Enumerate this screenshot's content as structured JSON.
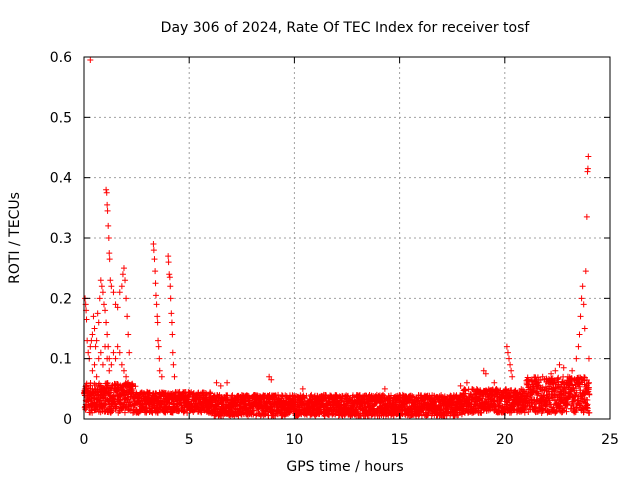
{
  "chart_data": {
    "type": "scatter",
    "title": "Day 306 of 2024, Rate Of TEC Index for receiver tosf",
    "xlabel": "GPS time / hours",
    "ylabel": "ROTI / TECUs",
    "xlim": [
      0,
      25
    ],
    "ylim": [
      0,
      0.6
    ],
    "xticks": [
      0,
      5,
      10,
      15,
      20,
      25
    ],
    "xtick_labels": [
      "0",
      "5",
      "10",
      "15",
      "20",
      "25"
    ],
    "yticks": [
      0,
      0.1,
      0.2,
      0.3,
      0.4,
      0.5,
      0.6
    ],
    "ytick_labels": [
      "0",
      "0.1",
      "0.2",
      "0.3",
      "0.4",
      "0.5",
      "0.6"
    ],
    "grid": true,
    "marker": "+",
    "color": "#ff0000",
    "series": [
      {
        "name": "ROTI",
        "points": [
          [
            0.05,
            0.2
          ],
          [
            0.08,
            0.19
          ],
          [
            0.1,
            0.18
          ],
          [
            0.12,
            0.165
          ],
          [
            0.15,
            0.13
          ],
          [
            0.2,
            0.11
          ],
          [
            0.25,
            0.1
          ],
          [
            0.3,
            0.12
          ],
          [
            0.35,
            0.13
          ],
          [
            0.4,
            0.14
          ],
          [
            0.45,
            0.17
          ],
          [
            0.5,
            0.15
          ],
          [
            0.55,
            0.12
          ],
          [
            0.6,
            0.13
          ],
          [
            0.65,
            0.175
          ],
          [
            0.7,
            0.16
          ],
          [
            0.75,
            0.2
          ],
          [
            0.8,
            0.23
          ],
          [
            0.85,
            0.22
          ],
          [
            0.9,
            0.21
          ],
          [
            0.95,
            0.19
          ],
          [
            1.0,
            0.18
          ],
          [
            1.05,
            0.16
          ],
          [
            1.1,
            0.14
          ],
          [
            1.15,
            0.12
          ],
          [
            1.2,
            0.1
          ],
          [
            0.4,
            0.08
          ],
          [
            0.5,
            0.09
          ],
          [
            0.6,
            0.07
          ],
          [
            0.7,
            0.1
          ],
          [
            0.8,
            0.11
          ],
          [
            0.9,
            0.09
          ],
          [
            1.0,
            0.12
          ],
          [
            1.1,
            0.1
          ],
          [
            1.2,
            0.08
          ],
          [
            1.3,
            0.09
          ],
          [
            1.4,
            0.11
          ],
          [
            1.5,
            0.1
          ],
          [
            1.6,
            0.12
          ],
          [
            1.7,
            0.11
          ],
          [
            1.8,
            0.09
          ],
          [
            1.9,
            0.08
          ],
          [
            2.0,
            0.07
          ],
          [
            2.1,
            0.06
          ],
          [
            0.3,
            0.595
          ],
          [
            1.05,
            0.38
          ],
          [
            1.08,
            0.375
          ],
          [
            1.1,
            0.355
          ],
          [
            1.12,
            0.345
          ],
          [
            1.15,
            0.32
          ],
          [
            1.18,
            0.3
          ],
          [
            1.2,
            0.275
          ],
          [
            1.22,
            0.265
          ],
          [
            1.25,
            0.23
          ],
          [
            1.3,
            0.22
          ],
          [
            1.4,
            0.21
          ],
          [
            1.5,
            0.19
          ],
          [
            1.6,
            0.185
          ],
          [
            1.7,
            0.21
          ],
          [
            1.8,
            0.22
          ],
          [
            1.85,
            0.24
          ],
          [
            1.9,
            0.25
          ],
          [
            1.95,
            0.23
          ],
          [
            2.0,
            0.2
          ],
          [
            2.05,
            0.17
          ],
          [
            2.1,
            0.14
          ],
          [
            2.15,
            0.11
          ],
          [
            3.3,
            0.29
          ],
          [
            3.32,
            0.28
          ],
          [
            3.35,
            0.265
          ],
          [
            3.38,
            0.245
          ],
          [
            3.4,
            0.225
          ],
          [
            3.42,
            0.205
          ],
          [
            3.45,
            0.19
          ],
          [
            3.48,
            0.17
          ],
          [
            3.5,
            0.16
          ],
          [
            3.52,
            0.13
          ],
          [
            3.55,
            0.12
          ],
          [
            3.58,
            0.1
          ],
          [
            3.6,
            0.08
          ],
          [
            3.7,
            0.07
          ],
          [
            4.0,
            0.27
          ],
          [
            4.02,
            0.26
          ],
          [
            4.05,
            0.24
          ],
          [
            4.08,
            0.235
          ],
          [
            4.1,
            0.22
          ],
          [
            4.12,
            0.2
          ],
          [
            4.15,
            0.175
          ],
          [
            4.18,
            0.16
          ],
          [
            4.2,
            0.14
          ],
          [
            4.22,
            0.11
          ],
          [
            4.25,
            0.09
          ],
          [
            4.3,
            0.07
          ],
          [
            6.3,
            0.06
          ],
          [
            6.5,
            0.055
          ],
          [
            6.8,
            0.06
          ],
          [
            8.8,
            0.07
          ],
          [
            8.9,
            0.065
          ],
          [
            10.4,
            0.05
          ],
          [
            14.3,
            0.05
          ],
          [
            17.9,
            0.055
          ],
          [
            18.2,
            0.06
          ],
          [
            19.0,
            0.08
          ],
          [
            19.1,
            0.075
          ],
          [
            19.5,
            0.06
          ],
          [
            20.1,
            0.12
          ],
          [
            20.15,
            0.11
          ],
          [
            20.2,
            0.1
          ],
          [
            20.25,
            0.09
          ],
          [
            20.3,
            0.08
          ],
          [
            20.35,
            0.07
          ],
          [
            21.5,
            0.06
          ],
          [
            21.8,
            0.07
          ],
          [
            22.0,
            0.065
          ],
          [
            22.2,
            0.075
          ],
          [
            22.4,
            0.08
          ],
          [
            22.6,
            0.09
          ],
          [
            22.8,
            0.085
          ],
          [
            23.0,
            0.07
          ],
          [
            23.2,
            0.08
          ],
          [
            23.4,
            0.1
          ],
          [
            23.5,
            0.12
          ],
          [
            23.55,
            0.14
          ],
          [
            23.6,
            0.17
          ],
          [
            23.65,
            0.2
          ],
          [
            23.7,
            0.22
          ],
          [
            23.75,
            0.19
          ],
          [
            23.8,
            0.15
          ],
          [
            23.85,
            0.245
          ],
          [
            23.9,
            0.335
          ],
          [
            23.93,
            0.41
          ],
          [
            23.95,
            0.415
          ],
          [
            23.97,
            0.435
          ],
          [
            24.0,
            0.1
          ],
          [
            24.0,
            0.06
          ]
        ],
        "baseline_bands": [
          {
            "x_from": 0.0,
            "x_to": 2.5,
            "y_min": 0.01,
            "y_max": 0.06
          },
          {
            "x_from": 2.5,
            "x_to": 6.0,
            "y_min": 0.01,
            "y_max": 0.045
          },
          {
            "x_from": 6.0,
            "x_to": 18.0,
            "y_min": 0.005,
            "y_max": 0.04
          },
          {
            "x_from": 18.0,
            "x_to": 21.0,
            "y_min": 0.01,
            "y_max": 0.05
          },
          {
            "x_from": 21.0,
            "x_to": 24.0,
            "y_min": 0.01,
            "y_max": 0.07
          }
        ]
      }
    ]
  }
}
